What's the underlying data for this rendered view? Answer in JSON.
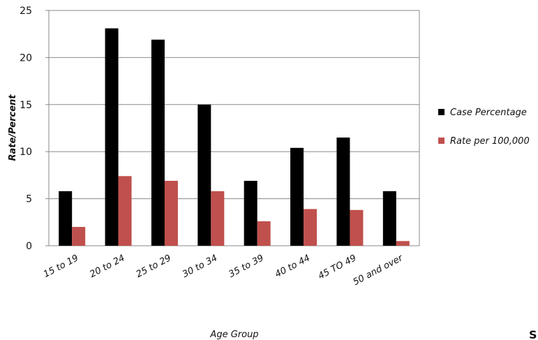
{
  "chart_data": {
    "type": "bar",
    "title": "",
    "xlabel": "Age Group",
    "ylabel": "Rate/Percent",
    "ylim": [
      0,
      25
    ],
    "yticks": [
      0,
      5,
      10,
      15,
      20,
      25
    ],
    "grid": true,
    "legend_position": "right",
    "categories": [
      "15 to 19",
      "20 to 24",
      "25 to 29",
      "30 to 34",
      "35 to 39",
      "40 to 44",
      "45 TO 49",
      "50 and over"
    ],
    "series": [
      {
        "name": "Case Percentage",
        "color": "#000000",
        "values": [
          5.8,
          23.1,
          21.9,
          15.0,
          6.9,
          10.4,
          11.5,
          5.8
        ]
      },
      {
        "name": "Rate per 100,000",
        "color": "#c0504d",
        "values": [
          2.0,
          7.4,
          6.9,
          5.8,
          2.6,
          3.9,
          3.8,
          0.5
        ]
      }
    ]
  },
  "corner_text": "S"
}
